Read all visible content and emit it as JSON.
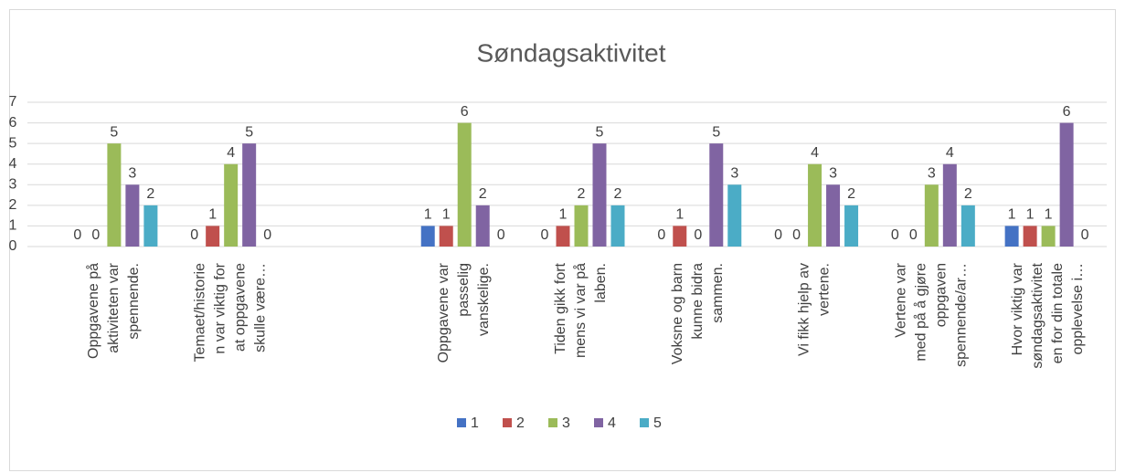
{
  "chart_data": {
    "type": "bar",
    "title": "Søndagsaktivitet",
    "categories": [
      "Oppgavene på\naktiviteten var\nspennende.",
      "Temaet/historie\nn var viktig for\nat oppgavene\nskulle være…",
      null,
      "Oppgavene var\npasselig\nvanskelige.",
      "Tiden gikk fort\nmens vi var på\nlaben.",
      "Voksne og barn\nkunne bidra\nsammen.",
      "Vi fikk hjelp av\nvertene.",
      "Vertene var\nmed på å gjøre\noppgaven\nspennende/ar…",
      "Hvor viktig var\nsøndagsaktivitet\nen for din totale\nopplevelse i…"
    ],
    "series": [
      {
        "name": "1",
        "color": "#4472c4",
        "values": [
          0,
          0,
          null,
          1,
          0,
          0,
          0,
          0,
          1
        ]
      },
      {
        "name": "2",
        "color": "#c0504d",
        "values": [
          0,
          1,
          null,
          1,
          1,
          1,
          0,
          0,
          1
        ]
      },
      {
        "name": "3",
        "color": "#9bbb59",
        "values": [
          5,
          4,
          null,
          6,
          2,
          0,
          4,
          3,
          1
        ]
      },
      {
        "name": "4",
        "color": "#8064a2",
        "values": [
          3,
          5,
          null,
          2,
          5,
          5,
          3,
          4,
          6
        ]
      },
      {
        "name": "5",
        "color": "#4bacc6",
        "values": [
          2,
          0,
          null,
          0,
          2,
          3,
          2,
          2,
          0
        ]
      }
    ],
    "ylim": [
      0,
      7
    ],
    "yticks": [
      0,
      1,
      2,
      3,
      4,
      5,
      6,
      7
    ],
    "grid": true,
    "legend": "bottom"
  }
}
